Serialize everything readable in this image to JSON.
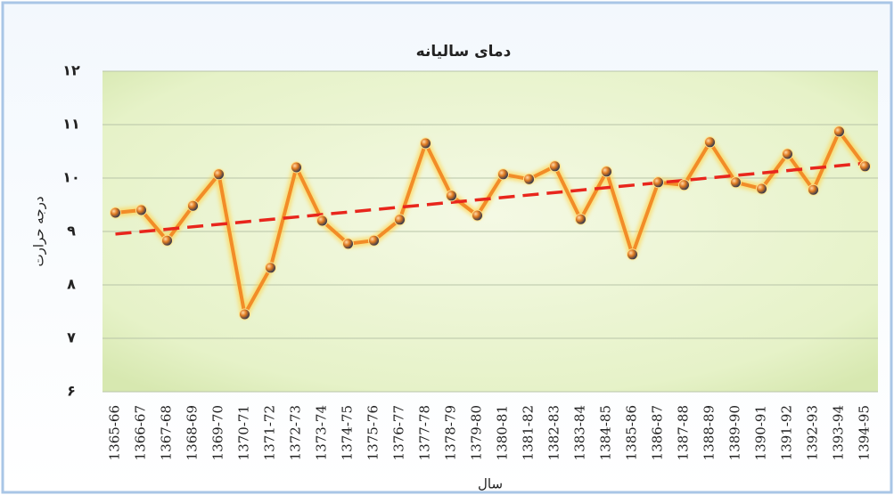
{
  "chart_data": {
    "type": "line",
    "title": "دمای سالیانه",
    "y_label": "درجه حرارت",
    "x_label": "سال",
    "categories": [
      "1365-66",
      "1366-67",
      "1367-68",
      "1368-69",
      "1369-70",
      "1370-71",
      "1371-72",
      "1372-73",
      "1373-74",
      "1374-75",
      "1375-76",
      "1376-77",
      "1377-78",
      "1378-79",
      "1379-80",
      "1380-81",
      "1381-82",
      "1382-83",
      "1383-84",
      "1384-85",
      "1385-86",
      "1386-87",
      "1387-88",
      "1388-89",
      "1389-90",
      "1390-91",
      "1391-92",
      "1392-93",
      "1393-94",
      "1394-95"
    ],
    "series": [
      {
        "name": "دمای سالیانه",
        "color": "#f28c28",
        "values": [
          9.35,
          9.4,
          8.83,
          9.48,
          10.07,
          7.45,
          8.32,
          10.2,
          9.2,
          8.77,
          8.83,
          9.22,
          10.65,
          9.67,
          9.3,
          10.07,
          9.98,
          10.22,
          9.23,
          10.12,
          8.57,
          9.92,
          9.87,
          10.67,
          9.92,
          9.8,
          10.45,
          9.78,
          10.87,
          10.22
        ]
      }
    ],
    "trendline": true,
    "trendline_color": "#e8261c",
    "ylim": [
      6,
      12
    ],
    "yticks": [
      {
        "value": 6,
        "label": "۶"
      },
      {
        "value": 7,
        "label": "۷"
      },
      {
        "value": 8,
        "label": "۸"
      },
      {
        "value": 9,
        "label": "۹"
      },
      {
        "value": 10,
        "label": "۱۰"
      },
      {
        "value": 11,
        "label": "۱۱"
      },
      {
        "value": 12,
        "label": "۱۲"
      }
    ],
    "grid": true
  }
}
